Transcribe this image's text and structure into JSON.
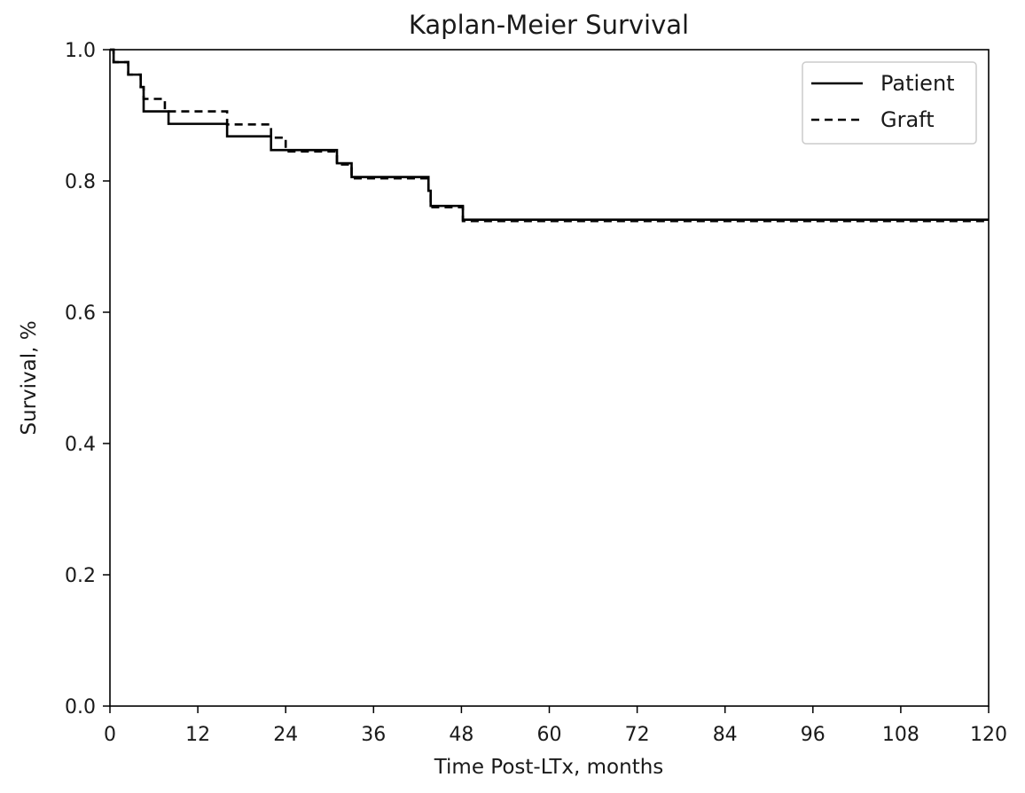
{
  "chart_data": {
    "type": "line",
    "step": "post",
    "title": "Kaplan-Meier Survival",
    "xlabel": "Time Post-LTx, months",
    "ylabel": "Survival, %",
    "xlim": [
      0,
      120
    ],
    "ylim": [
      0.0,
      1.0
    ],
    "xticks": [
      0,
      12,
      24,
      36,
      48,
      60,
      72,
      84,
      96,
      108,
      120
    ],
    "xtick_labels": [
      "0",
      "12",
      "24",
      "36",
      "48",
      "60",
      "72",
      "84",
      "96",
      "108",
      "120"
    ],
    "yticks": [
      0.0,
      0.2,
      0.4,
      0.6,
      0.8,
      1.0
    ],
    "ytick_labels": [
      "0.0",
      "0.2",
      "0.4",
      "0.6",
      "0.8",
      "1.0"
    ],
    "grid": false,
    "legend_position": "top-right",
    "series": [
      {
        "name": "Patient",
        "line_style": "solid",
        "color": "#000000",
        "x": [
          0,
          0.5,
          2.5,
          4.2,
          4.6,
          8,
          16,
          22,
          31,
          33,
          43.5,
          43.8,
          48.2,
          120
        ],
        "y": [
          1.0,
          0.981,
          0.962,
          0.943,
          0.906,
          0.887,
          0.868,
          0.847,
          0.827,
          0.806,
          0.785,
          0.762,
          0.741,
          0.741
        ]
      },
      {
        "name": "Graft",
        "line_style": "dashed",
        "color": "#000000",
        "x": [
          0,
          0.5,
          2.5,
          4.2,
          4.6,
          7.5,
          16,
          22,
          24,
          31,
          33,
          43.5,
          43.8,
          48.2,
          120
        ],
        "y": [
          1.0,
          0.981,
          0.962,
          0.943,
          0.925,
          0.906,
          0.886,
          0.866,
          0.845,
          0.825,
          0.804,
          0.783,
          0.76,
          0.739,
          0.739
        ]
      }
    ]
  }
}
